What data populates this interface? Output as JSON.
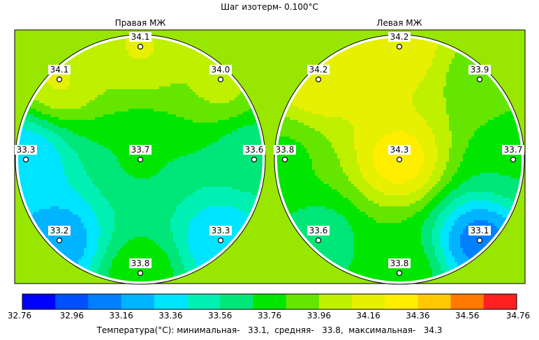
{
  "header": {
    "title": "Шаг изотерм- 0.100°C"
  },
  "chart_data": {
    "type": "heatmap",
    "title": "Шаг изотерм- 0.100°C",
    "colors": {
      "background": "#99e600",
      "frame": "#000000",
      "plot_border": "#f2f2f2"
    },
    "colorscale": {
      "ticks": [
        "32.76",
        "32.96",
        "33.16",
        "33.36",
        "33.56",
        "33.76",
        "33.96",
        "34.16",
        "34.36",
        "34.56",
        "34.76"
      ],
      "colors": [
        "#0000ff",
        "#0050ff",
        "#0080ff",
        "#00b4ff",
        "#00e5ff",
        "#00f0b4",
        "#00e678",
        "#00e600",
        "#64e600",
        "#bef000",
        "#e6f000",
        "#ffee00",
        "#ffc800",
        "#ff7800",
        "#ff2020"
      ]
    },
    "panels": [
      {
        "name": "Правая МЖ",
        "points": [
          {
            "label": "34.1",
            "value": 34.1,
            "location": "top"
          },
          {
            "label": "34.1",
            "value": 34.1,
            "location": "upper-left"
          },
          {
            "label": "34.0",
            "value": 34.0,
            "location": "upper-right"
          },
          {
            "label": "33.3",
            "value": 33.3,
            "location": "left"
          },
          {
            "label": "33.7",
            "value": 33.7,
            "location": "center"
          },
          {
            "label": "33.6",
            "value": 33.6,
            "location": "right"
          },
          {
            "label": "33.2",
            "value": 33.2,
            "location": "lower-left"
          },
          {
            "label": "33.3",
            "value": 33.3,
            "location": "lower-right"
          },
          {
            "label": "33.8",
            "value": 33.8,
            "location": "bottom"
          }
        ]
      },
      {
        "name": "Левая МЖ",
        "points": [
          {
            "label": "34.2",
            "value": 34.2,
            "location": "top"
          },
          {
            "label": "34.2",
            "value": 34.2,
            "location": "upper-left"
          },
          {
            "label": "33.9",
            "value": 33.9,
            "location": "upper-right"
          },
          {
            "label": "33.8",
            "value": 33.8,
            "location": "left"
          },
          {
            "label": "34.3",
            "value": 34.3,
            "location": "center"
          },
          {
            "label": "33.7",
            "value": 33.7,
            "location": "right"
          },
          {
            "label": "33.6",
            "value": 33.6,
            "location": "lower-left"
          },
          {
            "label": "33.1",
            "value": 33.1,
            "location": "lower-right"
          },
          {
            "label": "33.8",
            "value": 33.8,
            "location": "bottom"
          }
        ]
      }
    ]
  },
  "footer": {
    "text": "Температура(°С): минимальная-   33.1,  средняя-   33.8,  максимальная-   34.3"
  }
}
